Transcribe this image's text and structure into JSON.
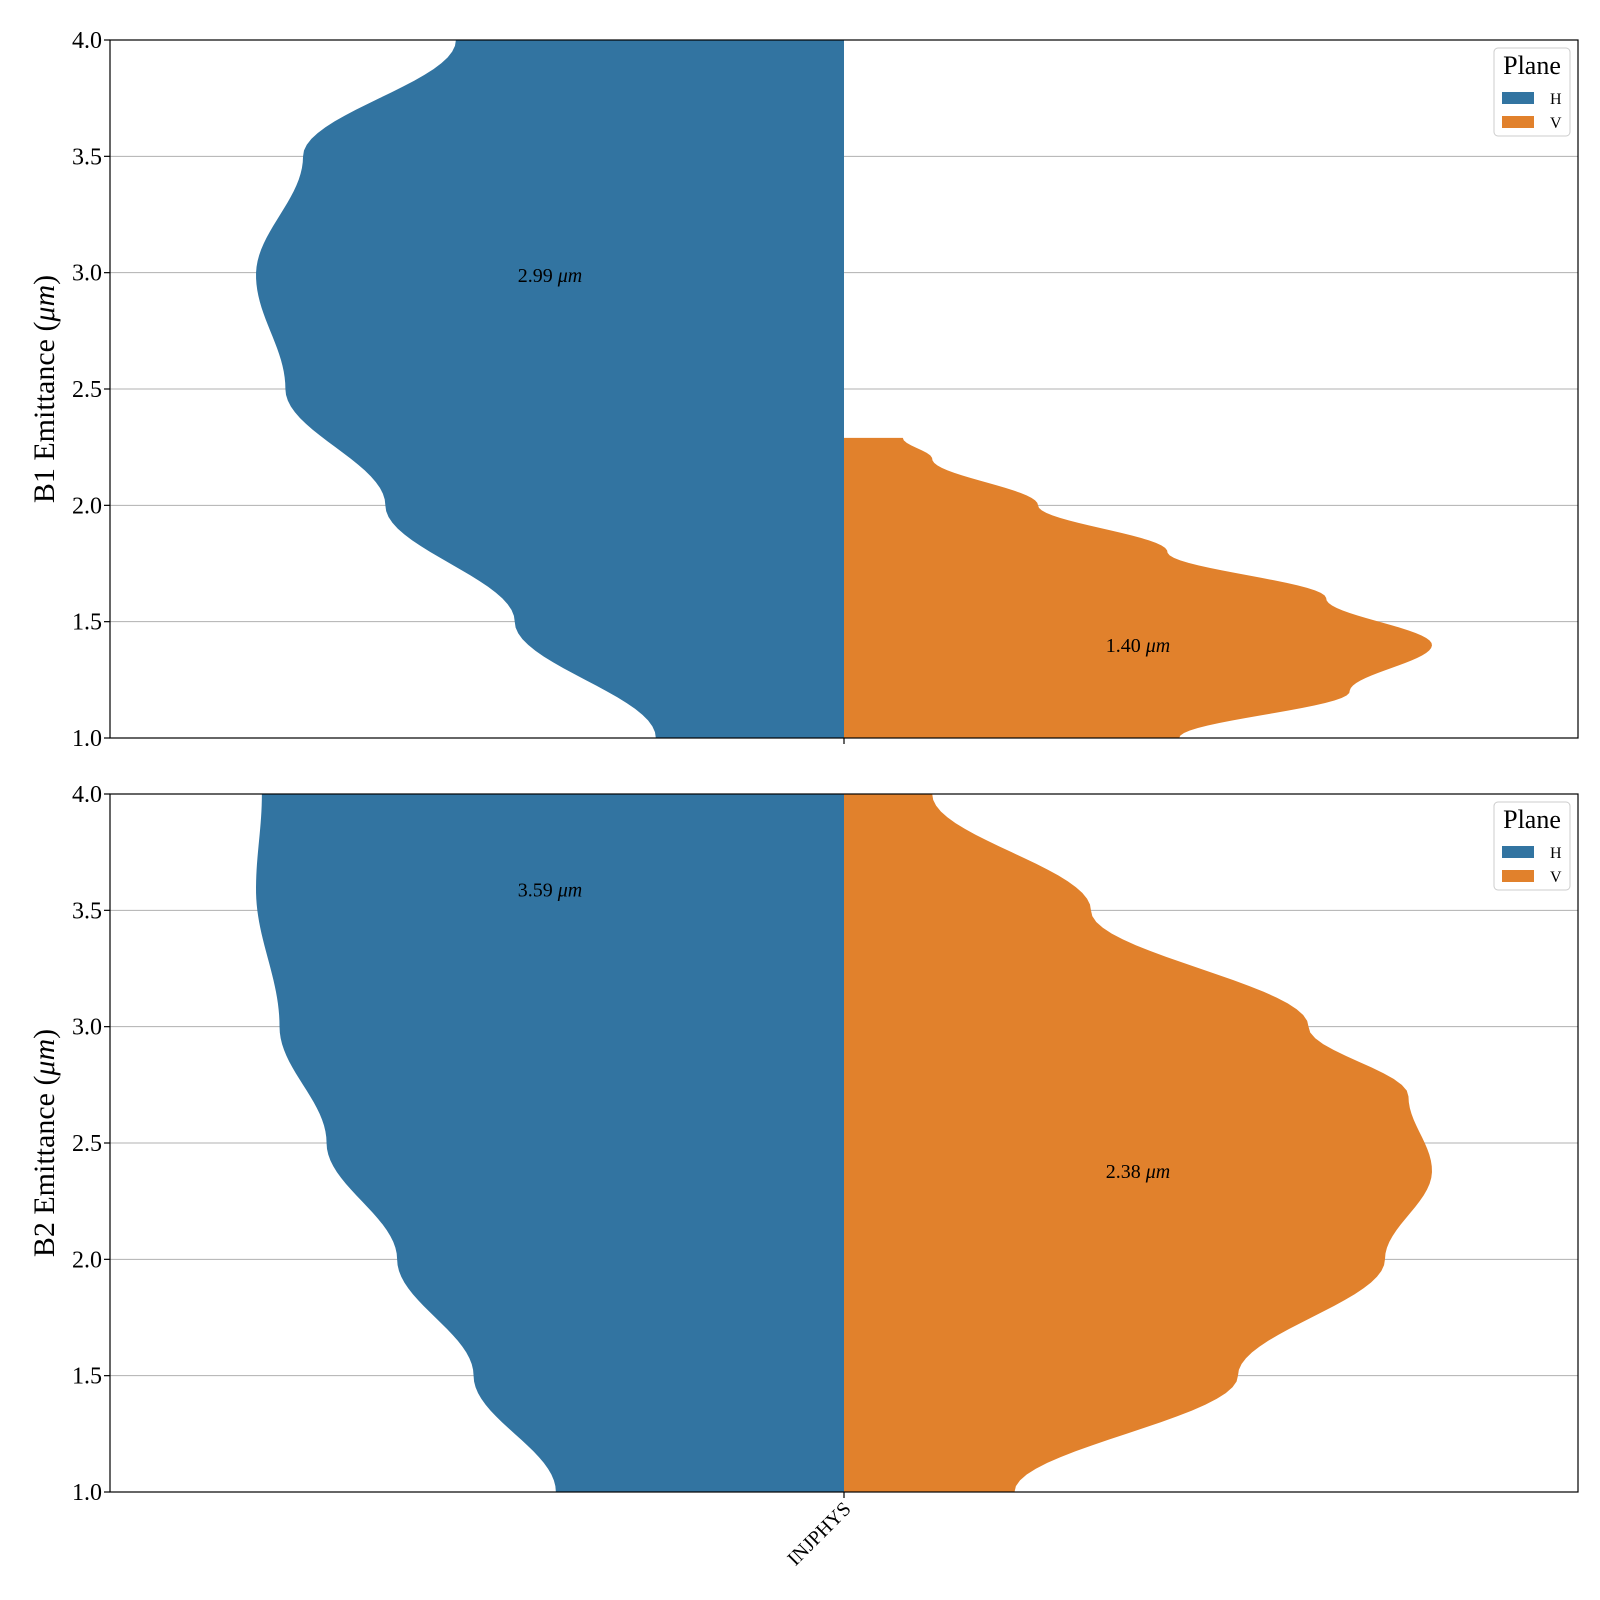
{
  "chart_data": [
    {
      "type": "violin",
      "ylabel": "B1 Emittance (μm)",
      "ylabel_parts": [
        "B1 Emittance (",
        "μm",
        ")"
      ],
      "ylim": [
        1.0,
        4.0
      ],
      "yticks": [
        "1.0",
        "1.5",
        "2.0",
        "2.5",
        "3.0",
        "3.5",
        "4.0"
      ],
      "grid": "y",
      "legend": {
        "title": "Plane",
        "placement": "top-right",
        "entries": [
          "H",
          "V"
        ]
      },
      "categories": [
        "INJPHYS"
      ],
      "series": [
        {
          "name": "H",
          "color": "#3274a1",
          "side": "left",
          "median": 2.99,
          "median_label": "2.99 μm",
          "median_label_parts": [
            "2.99 ",
            "μm"
          ],
          "y_max": 4.0,
          "profile": [
            [
              1.0,
              0.32
            ],
            [
              1.5,
              0.56
            ],
            [
              2.0,
              0.78
            ],
            [
              2.5,
              0.95
            ],
            [
              2.99,
              1.0
            ],
            [
              3.5,
              0.92
            ],
            [
              4.0,
              0.66
            ]
          ]
        },
        {
          "name": "V",
          "color": "#e1812c",
          "side": "right",
          "median": 1.4,
          "median_label": "1.40 μm",
          "median_label_parts": [
            "1.40 ",
            "μm"
          ],
          "y_max": 2.29,
          "profile": [
            [
              1.0,
              0.57
            ],
            [
              1.2,
              0.86
            ],
            [
              1.4,
              1.0
            ],
            [
              1.6,
              0.82
            ],
            [
              1.8,
              0.55
            ],
            [
              2.0,
              0.33
            ],
            [
              2.2,
              0.15
            ],
            [
              2.29,
              0.1
            ]
          ]
        }
      ]
    },
    {
      "type": "violin",
      "ylabel": "B2 Emittance (μm)",
      "ylabel_parts": [
        "B2 Emittance (",
        "μm",
        ")"
      ],
      "ylim": [
        1.0,
        4.0
      ],
      "yticks": [
        "1.0",
        "1.5",
        "2.0",
        "2.5",
        "3.0",
        "3.5",
        "4.0"
      ],
      "grid": "y",
      "xlabel_ticks": [
        "INJPHYS"
      ],
      "legend": {
        "title": "Plane",
        "placement": "top-right",
        "entries": [
          "H",
          "V"
        ]
      },
      "categories": [
        "INJPHYS"
      ],
      "series": [
        {
          "name": "H",
          "color": "#3274a1",
          "side": "left",
          "median": 3.59,
          "median_label": "3.59 μm",
          "median_label_parts": [
            "3.59 ",
            "μm"
          ],
          "y_max": 4.0,
          "profile": [
            [
              1.0,
              0.49
            ],
            [
              1.5,
              0.63
            ],
            [
              2.0,
              0.76
            ],
            [
              2.5,
              0.88
            ],
            [
              3.0,
              0.96
            ],
            [
              3.59,
              1.0
            ],
            [
              4.0,
              0.99
            ]
          ]
        },
        {
          "name": "V",
          "color": "#e1812c",
          "side": "right",
          "median": 2.38,
          "median_label": "2.38 μm",
          "median_label_parts": [
            "2.38 ",
            "μm"
          ],
          "y_max": 4.0,
          "profile": [
            [
              1.0,
              0.29
            ],
            [
              1.5,
              0.67
            ],
            [
              2.0,
              0.92
            ],
            [
              2.38,
              1.0
            ],
            [
              2.7,
              0.96
            ],
            [
              3.0,
              0.79
            ],
            [
              3.5,
              0.42
            ],
            [
              4.0,
              0.15
            ]
          ]
        }
      ]
    }
  ]
}
